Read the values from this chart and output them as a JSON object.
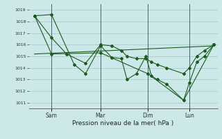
{
  "background_color": "#cce8e8",
  "grid_color": "#aacccc",
  "line_color": "#1a5c1a",
  "xlabel": "Pression niveau de la mer( hPa )",
  "ylim": [
    1010.5,
    1019.5
  ],
  "xlim": [
    0,
    100
  ],
  "yticks": [
    1011,
    1012,
    1013,
    1014,
    1015,
    1016,
    1017,
    1018,
    1019
  ],
  "day_labels": [
    "Sam",
    "Mar",
    "Dim",
    "Lun"
  ],
  "day_positions": [
    12,
    38,
    63,
    85
  ],
  "series1_x": [
    3,
    12,
    24,
    30,
    38,
    44,
    49,
    52,
    57,
    62,
    65,
    68,
    73,
    82,
    85,
    89,
    93,
    98
  ],
  "series1_y": [
    1018.5,
    1018.6,
    1014.3,
    1013.5,
    1015.9,
    1014.9,
    1014.8,
    1013.0,
    1013.5,
    1015.0,
    1013.3,
    1013.0,
    1012.6,
    1011.2,
    1012.7,
    1014.5,
    1015.0,
    1016.0
  ],
  "series2_x": [
    3,
    12,
    20,
    30,
    38,
    44,
    49,
    52,
    57,
    62,
    65,
    68,
    73,
    82,
    85,
    89,
    93,
    98
  ],
  "series2_y": [
    1018.5,
    1016.6,
    1015.2,
    1014.4,
    1016.0,
    1015.9,
    1015.5,
    1015.0,
    1014.8,
    1014.8,
    1014.5,
    1014.3,
    1014.0,
    1013.5,
    1014.0,
    1015.0,
    1015.5,
    1016.0
  ],
  "series3_x": [
    3,
    12,
    38,
    63,
    82,
    98
  ],
  "series3_y": [
    1018.5,
    1015.2,
    1015.3,
    1013.5,
    1011.2,
    1016.0
  ],
  "series4_x": [
    3,
    98
  ],
  "series4_y": [
    1015.2,
    1015.9
  ]
}
